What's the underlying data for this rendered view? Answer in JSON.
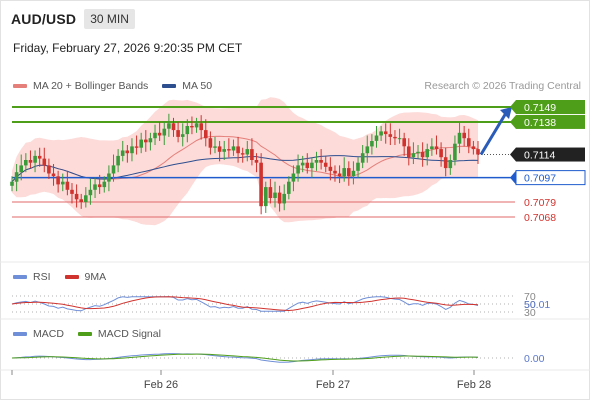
{
  "header": {
    "symbol": "AUD/USD",
    "interval": "30 MIN",
    "datetime": "Friday, February 27, 2026 9:20:35 PM CET"
  },
  "legend": {
    "ma20": "MA 20 + Bollinger Bands",
    "ma50": "MA 50",
    "credit": "Research © 2026 Trading Central"
  },
  "rsi_legend": {
    "rsi": "RSI",
    "ma9": "9MA"
  },
  "macd_legend": {
    "macd": "MACD",
    "signal": "MACD Signal"
  },
  "colors": {
    "bullish": "#3a9b3a",
    "bearish": "#d0332e",
    "resistance": "#4f9e1a",
    "support": "#1f5bcc",
    "weak_level": "#e06a6a",
    "bollinger_fill": "#fbd5d2",
    "ma20": "#e57f7a",
    "ma50": "#2d4e8f",
    "rsi_line": "#6f8fd8",
    "rsi_ma": "#d0332e",
    "macd_line": "#6f8fd8",
    "macd_signal": "#4f9e1a",
    "current_price_bg": "#222222"
  },
  "chart_data": {
    "type": "candlestick",
    "price_levels": [
      {
        "value": 0.7149,
        "label": "0.7149",
        "kind": "resistance"
      },
      {
        "value": 0.7138,
        "label": "0.7138",
        "kind": "resistance"
      },
      {
        "value": 0.7114,
        "label": "0.7114",
        "kind": "current"
      },
      {
        "value": 0.7097,
        "label": "0.7097",
        "kind": "pivot"
      },
      {
        "value": 0.7079,
        "label": "0.7079",
        "kind": "support"
      },
      {
        "value": 0.7068,
        "label": "0.7068",
        "kind": "support"
      }
    ],
    "x_ticks": [
      "Feb 26",
      "Feb 27",
      "Feb 28"
    ],
    "rsi": {
      "levels": [
        "70",
        "50",
        "30"
      ],
      "current": "50.01"
    },
    "macd": {
      "current": "0.00"
    },
    "candles_close": [
      0.7094,
      0.7101,
      0.7106,
      0.711,
      0.7108,
      0.7113,
      0.7111,
      0.7106,
      0.71,
      0.7098,
      0.7092,
      0.7094,
      0.7088,
      0.7085,
      0.7081,
      0.7079,
      0.7084,
      0.7088,
      0.7092,
      0.709,
      0.7094,
      0.71,
      0.7106,
      0.7113,
      0.7117,
      0.7115,
      0.712,
      0.7119,
      0.7125,
      0.7123,
      0.7126,
      0.713,
      0.7128,
      0.7133,
      0.7137,
      0.7132,
      0.7127,
      0.7129,
      0.7135,
      0.7134,
      0.7137,
      0.7132,
      0.7126,
      0.7119,
      0.712,
      0.7116,
      0.7118,
      0.7117,
      0.712,
      0.7115,
      0.7114,
      0.7118,
      0.711,
      0.7108,
      0.7076,
      0.709,
      0.7082,
      0.7086,
      0.7078,
      0.7085,
      0.7094,
      0.71,
      0.7106,
      0.7108,
      0.7104,
      0.7108,
      0.711,
      0.7108,
      0.7105,
      0.7102,
      0.71,
      0.7098,
      0.7104,
      0.7098,
      0.7102,
      0.7108,
      0.7115,
      0.712,
      0.7124,
      0.7128,
      0.7131,
      0.7129,
      0.7127,
      0.7126,
      0.7126,
      0.712,
      0.7112,
      0.7115,
      0.7116,
      0.7112,
      0.7118,
      0.712,
      0.7118,
      0.7112,
      0.7104,
      0.711,
      0.7122,
      0.713,
      0.7126,
      0.712,
      0.7118,
      0.7114
    ]
  }
}
